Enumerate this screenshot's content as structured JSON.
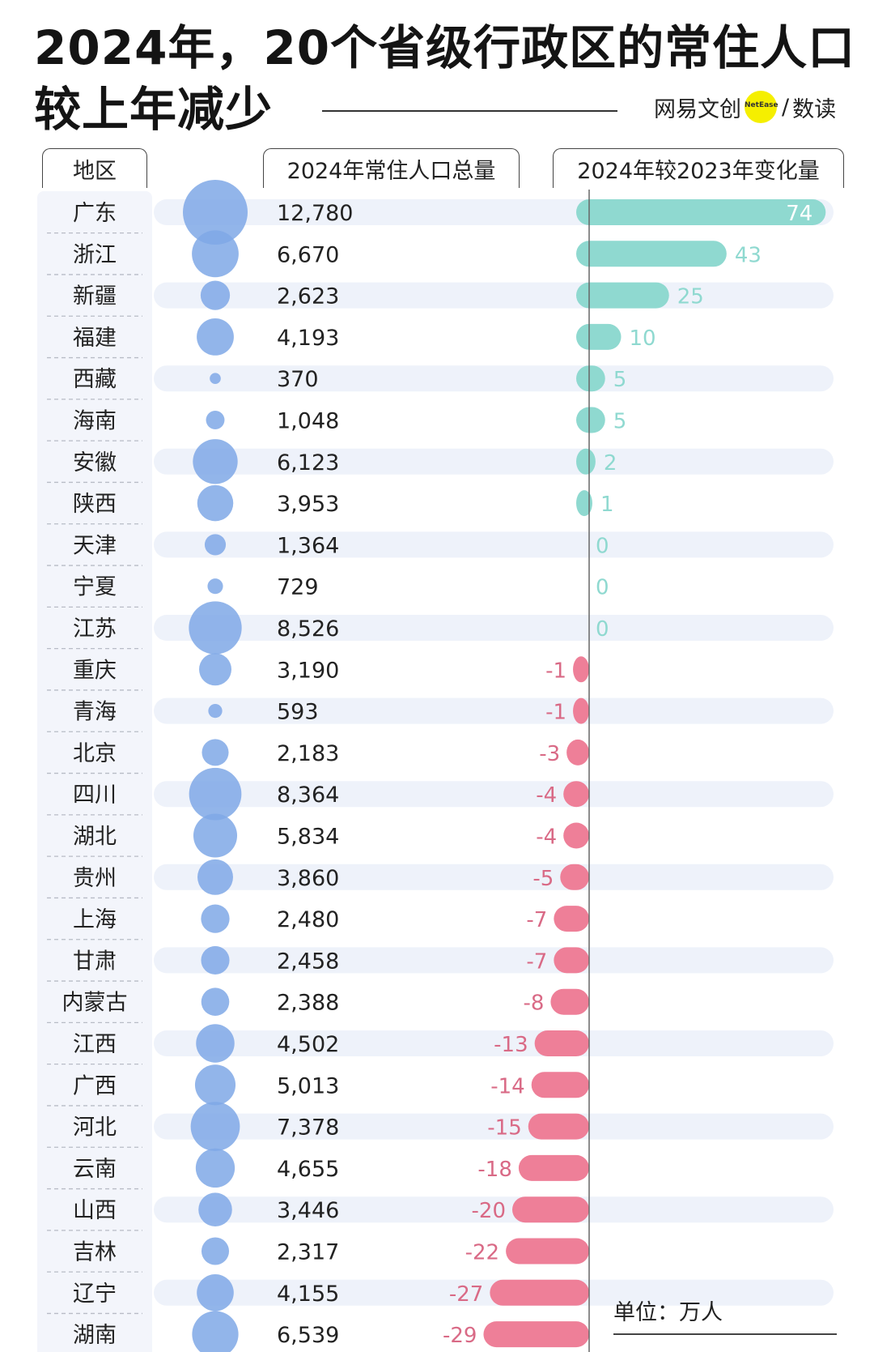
{
  "title": {
    "line1": "2024年，20个省级行政区的常住人口",
    "line2": "较上年减少"
  },
  "brand": {
    "main": "网易文创",
    "dot_text": "NetEase",
    "slash": "/",
    "sub": "数读",
    "dot_color": "#f5ef00"
  },
  "headers": {
    "region": "地区",
    "population": "2024年常住人口总量",
    "change": "2024年较2023年变化量"
  },
  "unit": "单位：万人",
  "colors": {
    "bubble": "#7fa8e6",
    "positive_bar": "#8fd9d0",
    "negative_bar": "#ee7f98",
    "row_band": "#eef2fa",
    "positive_text": "#8fd9d0",
    "negative_text": "#d96a86"
  },
  "chart_data": {
    "type": "table",
    "columns": [
      "地区",
      "2024年常住人口总量",
      "2024年较2023年变化量"
    ],
    "rows": [
      {
        "region": "广东",
        "population": 12780,
        "population_label": "12,780",
        "change": 74,
        "change_label": "74"
      },
      {
        "region": "浙江",
        "population": 6670,
        "population_label": "6,670",
        "change": 43,
        "change_label": "43"
      },
      {
        "region": "新疆",
        "population": 2623,
        "population_label": "2,623",
        "change": 25,
        "change_label": "25"
      },
      {
        "region": "福建",
        "population": 4193,
        "population_label": "4,193",
        "change": 10,
        "change_label": "10"
      },
      {
        "region": "西藏",
        "population": 370,
        "population_label": "370",
        "change": 5,
        "change_label": "5"
      },
      {
        "region": "海南",
        "population": 1048,
        "population_label": "1,048",
        "change": 5,
        "change_label": "5"
      },
      {
        "region": "安徽",
        "population": 6123,
        "population_label": "6,123",
        "change": 2,
        "change_label": "2"
      },
      {
        "region": "陕西",
        "population": 3953,
        "population_label": "3,953",
        "change": 1,
        "change_label": "1"
      },
      {
        "region": "天津",
        "population": 1364,
        "population_label": "1,364",
        "change": 0,
        "change_label": "0"
      },
      {
        "region": "宁夏",
        "population": 729,
        "population_label": "729",
        "change": 0,
        "change_label": "0"
      },
      {
        "region": "江苏",
        "population": 8526,
        "population_label": "8,526",
        "change": 0,
        "change_label": "0"
      },
      {
        "region": "重庆",
        "population": 3190,
        "population_label": "3,190",
        "change": -1,
        "change_label": "-1"
      },
      {
        "region": "青海",
        "population": 593,
        "population_label": "593",
        "change": -1,
        "change_label": "-1"
      },
      {
        "region": "北京",
        "population": 2183,
        "population_label": "2,183",
        "change": -3,
        "change_label": "-3"
      },
      {
        "region": "四川",
        "population": 8364,
        "population_label": "8,364",
        "change": -4,
        "change_label": "-4"
      },
      {
        "region": "湖北",
        "population": 5834,
        "population_label": "5,834",
        "change": -4,
        "change_label": "-4"
      },
      {
        "region": "贵州",
        "population": 3860,
        "population_label": "3,860",
        "change": -5,
        "change_label": "-5"
      },
      {
        "region": "上海",
        "population": 2480,
        "population_label": "2,480",
        "change": -7,
        "change_label": "-7"
      },
      {
        "region": "甘肃",
        "population": 2458,
        "population_label": "2,458",
        "change": -7,
        "change_label": "-7"
      },
      {
        "region": "内蒙古",
        "population": 2388,
        "population_label": "2,388",
        "change": -8,
        "change_label": "-8"
      },
      {
        "region": "江西",
        "population": 4502,
        "population_label": "4,502",
        "change": -13,
        "change_label": "-13"
      },
      {
        "region": "广西",
        "population": 5013,
        "population_label": "5,013",
        "change": -14,
        "change_label": "-14"
      },
      {
        "region": "河北",
        "population": 7378,
        "population_label": "7,378",
        "change": -15,
        "change_label": "-15"
      },
      {
        "region": "云南",
        "population": 4655,
        "population_label": "4,655",
        "change": -18,
        "change_label": "-18"
      },
      {
        "region": "山西",
        "population": 3446,
        "population_label": "3,446",
        "change": -20,
        "change_label": "-20"
      },
      {
        "region": "吉林",
        "population": 2317,
        "population_label": "2,317",
        "change": -22,
        "change_label": "-22"
      },
      {
        "region": "辽宁",
        "population": 4155,
        "population_label": "4,155",
        "change": -27,
        "change_label": "-27"
      },
      {
        "region": "湖南",
        "population": 6539,
        "population_label": "6,539",
        "change": -29,
        "change_label": "-29"
      }
    ]
  }
}
